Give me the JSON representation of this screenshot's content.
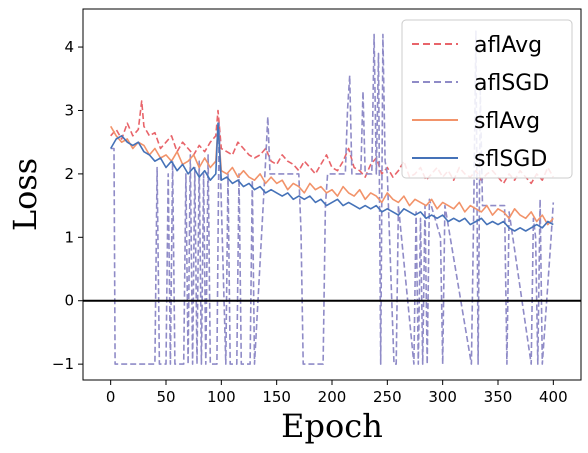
{
  "chart_data": {
    "type": "line",
    "xlabel": "Epoch",
    "ylabel": "Loss",
    "xlim": [
      -25,
      425
    ],
    "ylim": [
      -1.25,
      4.6
    ],
    "xticks": [
      0,
      50,
      100,
      150,
      200,
      250,
      300,
      350,
      400
    ],
    "yticks": [
      -1,
      0,
      1,
      2,
      3,
      4
    ],
    "grid": false,
    "legend_position": "top-right",
    "reference_line": {
      "y": 0,
      "color": "#000000"
    },
    "series": [
      {
        "name": "aflAvg",
        "style": "dashed",
        "color": "#e8646a",
        "x": [
          0,
          5,
          10,
          15,
          20,
          25,
          28,
          30,
          35,
          40,
          45,
          50,
          55,
          60,
          65,
          70,
          75,
          80,
          85,
          90,
          95,
          97,
          100,
          105,
          110,
          115,
          120,
          125,
          130,
          135,
          140,
          145,
          150,
          155,
          160,
          165,
          170,
          175,
          180,
          185,
          190,
          195,
          200,
          205,
          210,
          215,
          220,
          225,
          230,
          235,
          240,
          245,
          250,
          255,
          260,
          265,
          270,
          275,
          280,
          285,
          290,
          295,
          300,
          305,
          310,
          315,
          320,
          325,
          330,
          335,
          340,
          345,
          350,
          355,
          360,
          365,
          370,
          375,
          380,
          385,
          390,
          395,
          400
        ],
        "y": [
          2.6,
          2.7,
          2.55,
          2.8,
          2.6,
          2.7,
          3.15,
          2.75,
          2.6,
          2.65,
          2.4,
          2.5,
          2.6,
          2.35,
          2.5,
          2.4,
          2.3,
          2.45,
          2.35,
          2.5,
          2.6,
          3.0,
          2.4,
          2.35,
          2.3,
          2.5,
          2.4,
          2.3,
          2.25,
          2.3,
          2.4,
          2.2,
          2.15,
          2.3,
          2.2,
          2.15,
          2.05,
          2.2,
          2.1,
          2.0,
          2.15,
          2.3,
          2.1,
          2.05,
          2.2,
          2.4,
          2.1,
          2.05,
          1.95,
          2.15,
          2.25,
          2.0,
          2.1,
          1.95,
          2.05,
          2.2,
          1.95,
          2.0,
          2.1,
          1.9,
          2.0,
          2.1,
          1.95,
          2.05,
          1.9,
          2.1,
          2.0,
          1.95,
          2.05,
          1.9,
          2.0,
          2.05,
          1.95,
          1.85,
          2.0,
          1.9,
          2.05,
          1.95,
          1.85,
          2.0,
          1.9,
          2.1,
          1.95
        ]
      },
      {
        "name": "aflSGD",
        "style": "dashed",
        "color": "#8f8bc7",
        "x": [
          0,
          3,
          4,
          5,
          40,
          42,
          44,
          50,
          52,
          54,
          56,
          58,
          60,
          66,
          68,
          70,
          72,
          74,
          76,
          78,
          80,
          82,
          84,
          86,
          88,
          90,
          96,
          98,
          104,
          106,
          108,
          114,
          116,
          118,
          126,
          128,
          130,
          140,
          142,
          144,
          170,
          172,
          174,
          192,
          194,
          196,
          212,
          214,
          216,
          218,
          226,
          228,
          230,
          236,
          238,
          240,
          242,
          244,
          246,
          248,
          250,
          256,
          258,
          260,
          274,
          276,
          278,
          280,
          282,
          284,
          286,
          288,
          298,
          300,
          302,
          326,
          328,
          330,
          332,
          334,
          336,
          356,
          358,
          360,
          380,
          382,
          384,
          386,
          388,
          390,
          398,
          400
        ],
        "y": [
          2.4,
          2.4,
          -1,
          -1,
          -1,
          2.1,
          -1,
          -1,
          2.0,
          -1,
          2.2,
          -1,
          -1,
          -1,
          2.0,
          -1,
          2.3,
          -1,
          2.1,
          -1,
          2.2,
          -1,
          2.0,
          -1,
          2.3,
          -1,
          -1,
          2.8,
          -1,
          2.0,
          -1,
          -1,
          2.0,
          -1,
          -1,
          1.9,
          -1,
          2.2,
          2.9,
          2.0,
          2.0,
          1.1,
          -1,
          -1,
          1.5,
          2.0,
          2.0,
          3.0,
          3.55,
          2.0,
          2.0,
          3.3,
          2.0,
          2.0,
          4.2,
          2.0,
          3.9,
          -1,
          4.2,
          2.2,
          2.0,
          -1,
          -1,
          1.5,
          -1,
          1.4,
          -1,
          1.3,
          -1,
          1.5,
          -1,
          1.6,
          1.0,
          -1,
          1.5,
          -1,
          1.4,
          4.25,
          -1,
          3.3,
          1.5,
          1.5,
          -1,
          1.4,
          -1,
          1.3,
          1.0,
          -1,
          1.6,
          -1,
          1.0,
          1.55
        ]
      },
      {
        "name": "sflAvg",
        "style": "solid",
        "color": "#f2936a",
        "x": [
          0,
          5,
          10,
          15,
          20,
          25,
          30,
          35,
          40,
          45,
          50,
          55,
          60,
          65,
          70,
          75,
          80,
          85,
          90,
          95,
          97,
          100,
          105,
          110,
          115,
          120,
          125,
          130,
          135,
          140,
          145,
          150,
          155,
          160,
          165,
          170,
          175,
          180,
          185,
          190,
          195,
          200,
          205,
          210,
          215,
          220,
          225,
          230,
          235,
          240,
          245,
          250,
          255,
          260,
          265,
          270,
          275,
          280,
          285,
          290,
          295,
          300,
          305,
          310,
          315,
          320,
          325,
          330,
          335,
          340,
          345,
          350,
          355,
          360,
          365,
          370,
          375,
          380,
          385,
          390,
          395,
          400
        ],
        "y": [
          2.75,
          2.6,
          2.5,
          2.55,
          2.4,
          2.5,
          2.45,
          2.3,
          2.4,
          2.25,
          2.3,
          2.2,
          2.35,
          2.15,
          2.2,
          2.3,
          2.1,
          2.25,
          2.1,
          2.2,
          2.75,
          2.05,
          2.0,
          2.1,
          1.95,
          2.05,
          1.95,
          1.9,
          2.0,
          1.85,
          1.95,
          1.85,
          1.9,
          1.75,
          1.85,
          1.8,
          1.7,
          1.85,
          1.75,
          1.8,
          1.7,
          1.75,
          1.65,
          1.8,
          1.7,
          1.65,
          1.75,
          1.6,
          1.7,
          1.65,
          1.55,
          1.7,
          1.6,
          1.55,
          1.65,
          1.5,
          1.6,
          1.55,
          1.5,
          1.6,
          1.45,
          1.55,
          1.5,
          1.45,
          1.55,
          1.4,
          1.5,
          1.45,
          1.4,
          1.5,
          1.35,
          1.45,
          1.4,
          1.3,
          1.45,
          1.35,
          1.3,
          1.4,
          1.25,
          1.35,
          1.2,
          1.3
        ]
      },
      {
        "name": "sflSGD",
        "style": "solid",
        "color": "#4572b8",
        "x": [
          0,
          5,
          10,
          15,
          20,
          25,
          30,
          35,
          40,
          45,
          50,
          55,
          60,
          65,
          70,
          75,
          80,
          85,
          90,
          95,
          97,
          100,
          105,
          110,
          115,
          120,
          125,
          130,
          135,
          140,
          145,
          150,
          155,
          160,
          165,
          170,
          175,
          180,
          185,
          190,
          195,
          200,
          205,
          210,
          215,
          220,
          225,
          230,
          235,
          240,
          245,
          250,
          255,
          260,
          265,
          270,
          275,
          280,
          285,
          290,
          295,
          300,
          305,
          310,
          315,
          320,
          325,
          330,
          335,
          340,
          345,
          350,
          355,
          360,
          365,
          370,
          375,
          380,
          385,
          390,
          395,
          400
        ],
        "y": [
          2.4,
          2.55,
          2.6,
          2.5,
          2.45,
          2.5,
          2.35,
          2.3,
          2.2,
          2.25,
          2.1,
          2.2,
          2.05,
          2.15,
          2.0,
          2.1,
          1.95,
          2.05,
          1.9,
          2.0,
          2.8,
          1.9,
          1.95,
          1.85,
          1.9,
          1.8,
          1.85,
          1.75,
          1.8,
          1.7,
          1.75,
          1.7,
          1.65,
          1.7,
          1.6,
          1.65,
          1.6,
          1.65,
          1.55,
          1.6,
          1.5,
          1.55,
          1.6,
          1.5,
          1.55,
          1.5,
          1.45,
          1.5,
          1.45,
          1.5,
          1.4,
          1.45,
          1.4,
          1.35,
          1.45,
          1.4,
          1.35,
          1.4,
          1.3,
          1.35,
          1.3,
          1.35,
          1.25,
          1.3,
          1.25,
          1.3,
          1.2,
          1.25,
          1.3,
          1.2,
          1.25,
          1.2,
          1.25,
          1.15,
          1.1,
          1.15,
          1.1,
          1.15,
          1.2,
          1.15,
          1.25,
          1.2
        ]
      }
    ]
  }
}
